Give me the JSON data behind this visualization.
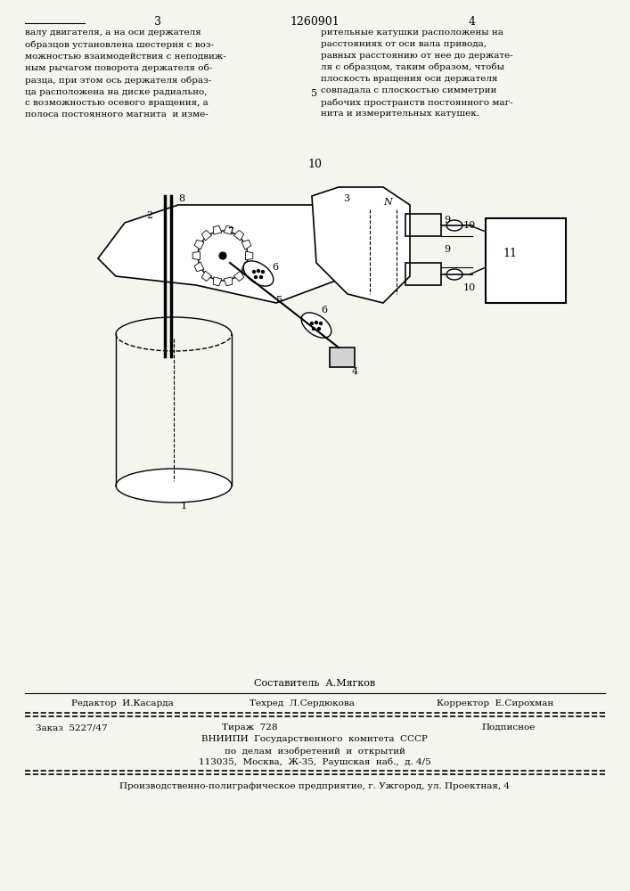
{
  "bg_color": "#f5f5f0",
  "page_number_left": "3",
  "page_number_center": "1260901",
  "page_number_right": "4",
  "left_column_text": "валу двигателя, а на оси держателя\nобразцов установлена шестерня с воз-\nможностью взаимодействия с неподвиж-\nным рычагом поворота держателя об-\nразца, при этом ось держателя образ-\nца расположена на диске радиально,\nс возможностью осевого вращения, а\nполоса постоянного магнита  и изме-",
  "right_column_text": "рительные катушки расположены на\nрасстояниях от оси вала привода,\nравных расстоянию от нее до держате-\nля с образцом, таким образом, чтобы\nплоскость вращения оси держателя\nсовпадала с плоскостью симметрии\nрабочих пространств постоянного маг-\nнита и измерительных катушек.",
  "fig_number": "10",
  "editor_line": "Редактор  И.Касарда",
  "tech_line": "Техред  Л.Сердюкова",
  "corrector_line": "Корректор  Е.Сирохман",
  "order_line": "Заказ  5227/47",
  "tirazh_line": "Тираж  728",
  "podpisnoe_line": "Подписное",
  "vniiipi_line": "ВНИИПИ  Государственного  комитета  СССР",
  "po_delam_line": "по  делам  изобретений  и  открытий",
  "address_line": "113035,  Москва,  Ж-35,  Раушская  наб.,  д. 4/5",
  "enterprise_line": "Производственно-полиграфическое предприятие, г. Ужгород, ул. Проектная, 4",
  "sostavitel_line": "Составитель  А.Мягков"
}
